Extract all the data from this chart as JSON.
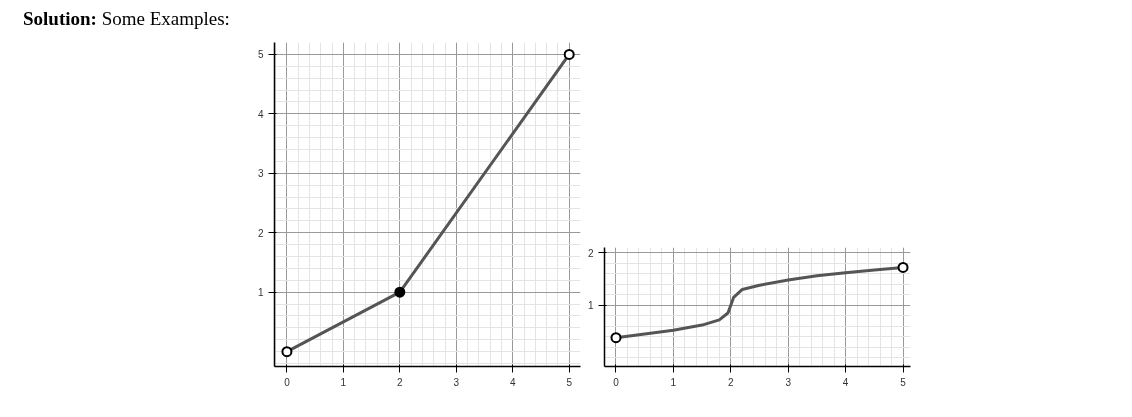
{
  "chart_data": [
    {
      "type": "line",
      "title": "Solution: Some Examples:",
      "xlim": [
        -0.22,
        5.2
      ],
      "ylim": [
        -0.25,
        5.2
      ],
      "xticks": [
        0,
        1,
        2,
        3,
        4,
        5
      ],
      "yticks": [
        1,
        2,
        3,
        4,
        5
      ],
      "grid": true,
      "marker": "none",
      "line_style": "solid",
      "series": [
        {
          "color": "#555555",
          "x": [
            0,
            2,
            5
          ],
          "values": [
            0,
            1,
            5
          ]
        },
        {
          "type": "scatter",
          "marker": "circle",
          "colors": [
            "#ffffff",
            "#000000",
            "#ffffff"
          ],
          "x": [
            0,
            2,
            5
          ],
          "values": [
            0,
            1,
            5
          ]
        }
      ]
    },
    {
      "type": "line",
      "xlim": [
        -0.2,
        5.13
      ],
      "ylim": [
        -0.17,
        2.1
      ],
      "xticks": [
        0,
        1,
        2,
        3,
        4,
        5
      ],
      "yticks": [
        1,
        2
      ],
      "grid": true,
      "marker": "none",
      "line_style": "solid",
      "series": [
        {
          "color": "#555555",
          "x": [
            0,
            0.5,
            1,
            1.5,
            1.8,
            1.95,
            2,
            2.05,
            2.2,
            2.5,
            3,
            3.5,
            4,
            4.5,
            5
          ],
          "values": [
            0.38,
            0.45,
            0.52,
            0.62,
            0.72,
            0.85,
            1.0,
            1.15,
            1.3,
            1.38,
            1.48,
            1.56,
            1.62,
            1.67,
            1.72
          ]
        },
        {
          "type": "scatter",
          "marker": "circle",
          "colors": [
            "#ffffff",
            "#ffffff"
          ],
          "x": [
            0,
            5
          ],
          "values": [
            0.38,
            1.72
          ]
        }
      ]
    }
  ]
}
